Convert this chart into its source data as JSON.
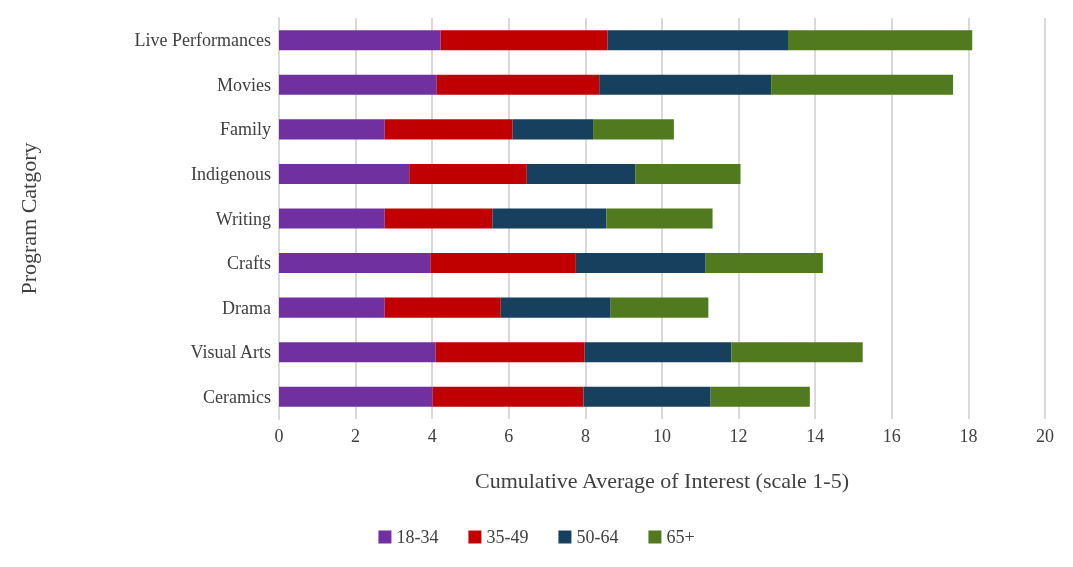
{
  "chart_data": {
    "type": "bar",
    "orientation": "horizontal",
    "stacked": true,
    "xlabel": "Cumulative Average of Interest (scale 1-5)",
    "ylabel": "Program Catgory",
    "categories": [
      "Live Performances",
      "Movies",
      "Family",
      "Indigenous",
      "Writing",
      "Crafts",
      "Drama",
      "Visual Arts",
      "Ceramics"
    ],
    "series": [
      {
        "name": "18-34",
        "color": "#7030a0",
        "values": [
          4.22,
          4.12,
          2.76,
          3.4,
          2.76,
          3.95,
          2.76,
          4.09,
          4.01
        ]
      },
      {
        "name": "35-49",
        "color": "#c00000",
        "values": [
          4.36,
          4.24,
          3.34,
          3.07,
          2.81,
          3.8,
          3.03,
          3.89,
          3.94
        ]
      },
      {
        "name": "50-64",
        "color": "#17405e",
        "values": [
          4.71,
          4.49,
          2.1,
          2.83,
          2.98,
          3.39,
          2.87,
          3.83,
          3.32
        ]
      },
      {
        "name": "65+",
        "color": "#517a1e",
        "values": [
          4.81,
          4.75,
          2.11,
          2.75,
          2.77,
          3.06,
          2.55,
          3.43,
          2.59
        ]
      }
    ],
    "xlim": [
      0,
      20
    ],
    "xticks": [
      0,
      2,
      4,
      6,
      8,
      10,
      12,
      14,
      16,
      18,
      20
    ],
    "grid": "x",
    "legend": "bottom"
  }
}
